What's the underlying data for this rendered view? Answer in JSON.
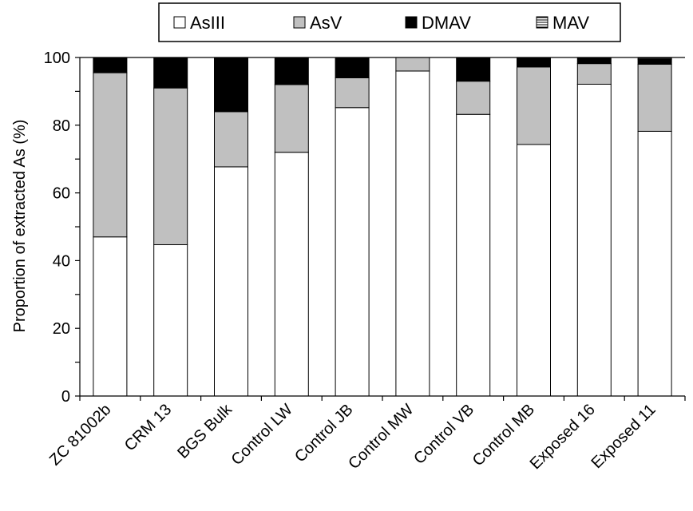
{
  "chart_data": {
    "type": "bar",
    "stacked": true,
    "title": "",
    "xlabel": "",
    "ylabel": "Proportion of extracted As (%)",
    "ylim": [
      0,
      100
    ],
    "yticks": [
      "0",
      "20",
      "40",
      "60",
      "80",
      "100"
    ],
    "grid": false,
    "legend_position": "top",
    "categories": [
      "ZC 81002b",
      "CRM 13",
      "BGS Bulk",
      "Control LW",
      "Control JB",
      "Control MW",
      "Control VB",
      "Control MB",
      "Exposed 16",
      "Exposed 11"
    ],
    "series": [
      {
        "name": "AsIII",
        "color": "#ffffff",
        "pattern": "solid",
        "values": [
          47,
          44.7,
          67.7,
          72,
          85.2,
          96,
          83.2,
          74.3,
          92.1,
          78.2
        ]
      },
      {
        "name": "AsV",
        "color": "#c0c0c0",
        "pattern": "solid",
        "values": [
          48.5,
          46.3,
          16.3,
          20,
          8.8,
          4,
          9.8,
          22.9,
          6.1,
          19.8
        ]
      },
      {
        "name": "DMAV",
        "color": "#000000",
        "pattern": "solid",
        "values": [
          4.5,
          9,
          16,
          8,
          6,
          0,
          7,
          2.8,
          1.8,
          1.5
        ]
      },
      {
        "name": "MAV",
        "color": "#ffffff",
        "pattern": "horizontal-lines",
        "values": [
          0,
          0,
          0,
          0,
          0,
          0,
          0,
          0,
          0,
          0.5
        ]
      }
    ]
  }
}
